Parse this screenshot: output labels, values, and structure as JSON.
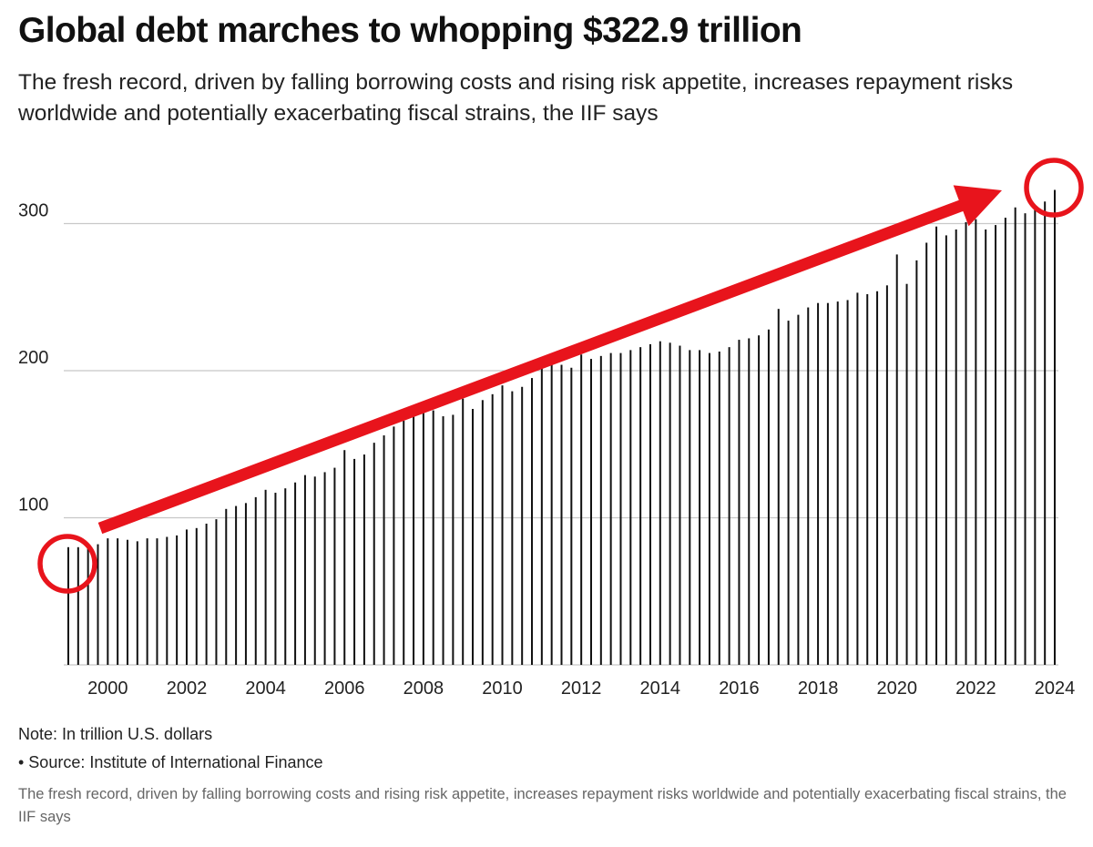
{
  "header": {
    "title": "Global debt marches to whopping $322.9 trillion",
    "subtitle": "The fresh record, driven by falling borrowing costs and rising risk appetite, increases repayment risks worldwide and potentially exacerbating fiscal strains, the IIF says"
  },
  "footer": {
    "note": "Note: In trillion U.S. dollars",
    "source": "• Source: Institute of International Finance",
    "caption": "The fresh record, driven by falling borrowing costs and rising risk appetite, increases repayment risks worldwide and potentially exacerbating fiscal strains, the IIF says"
  },
  "colors": {
    "bar": "#111111",
    "grid": "#c8c8c8",
    "annotation": "#e8141c"
  },
  "chart_data": {
    "type": "bar",
    "title": "Global debt marches to whopping $322.9 trillion",
    "xlabel": "",
    "ylabel": "",
    "unit": "trillion U.S. dollars",
    "ylim": [
      0,
      340
    ],
    "y_ticks": [
      100,
      200,
      300
    ],
    "x_tick_labels": [
      "2000",
      "2002",
      "2004",
      "2006",
      "2008",
      "2010",
      "2012",
      "2014",
      "2016",
      "2018",
      "2020",
      "2022",
      "2024"
    ],
    "grid": true,
    "series": [
      {
        "name": "Global debt",
        "points": [
          {
            "x": 1999.0,
            "y": 80
          },
          {
            "x": 1999.25,
            "y": 80
          },
          {
            "x": 1999.5,
            "y": 81
          },
          {
            "x": 1999.75,
            "y": 82
          },
          {
            "x": 2000.0,
            "y": 86
          },
          {
            "x": 2000.25,
            "y": 86
          },
          {
            "x": 2000.5,
            "y": 85
          },
          {
            "x": 2000.75,
            "y": 84
          },
          {
            "x": 2001.0,
            "y": 86
          },
          {
            "x": 2001.25,
            "y": 86
          },
          {
            "x": 2001.5,
            "y": 87
          },
          {
            "x": 2001.75,
            "y": 88
          },
          {
            "x": 2002.0,
            "y": 92
          },
          {
            "x": 2002.25,
            "y": 93
          },
          {
            "x": 2002.5,
            "y": 96
          },
          {
            "x": 2002.75,
            "y": 99
          },
          {
            "x": 2003.0,
            "y": 106
          },
          {
            "x": 2003.25,
            "y": 108
          },
          {
            "x": 2003.5,
            "y": 110
          },
          {
            "x": 2003.75,
            "y": 114
          },
          {
            "x": 2004.0,
            "y": 119
          },
          {
            "x": 2004.25,
            "y": 117
          },
          {
            "x": 2004.5,
            "y": 120
          },
          {
            "x": 2004.75,
            "y": 124
          },
          {
            "x": 2005.0,
            "y": 129
          },
          {
            "x": 2005.25,
            "y": 128
          },
          {
            "x": 2005.5,
            "y": 131
          },
          {
            "x": 2005.75,
            "y": 134
          },
          {
            "x": 2006.0,
            "y": 146
          },
          {
            "x": 2006.25,
            "y": 140
          },
          {
            "x": 2006.5,
            "y": 143
          },
          {
            "x": 2006.75,
            "y": 151
          },
          {
            "x": 2007.0,
            "y": 156
          },
          {
            "x": 2007.25,
            "y": 162
          },
          {
            "x": 2007.5,
            "y": 166
          },
          {
            "x": 2007.75,
            "y": 170
          },
          {
            "x": 2008.0,
            "y": 172
          },
          {
            "x": 2008.25,
            "y": 173
          },
          {
            "x": 2008.5,
            "y": 169
          },
          {
            "x": 2008.75,
            "y": 170
          },
          {
            "x": 2009.0,
            "y": 181
          },
          {
            "x": 2009.25,
            "y": 174
          },
          {
            "x": 2009.5,
            "y": 180
          },
          {
            "x": 2009.75,
            "y": 184
          },
          {
            "x": 2010.0,
            "y": 190
          },
          {
            "x": 2010.25,
            "y": 186
          },
          {
            "x": 2010.5,
            "y": 189
          },
          {
            "x": 2010.75,
            "y": 195
          },
          {
            "x": 2011.0,
            "y": 203
          },
          {
            "x": 2011.25,
            "y": 205
          },
          {
            "x": 2011.5,
            "y": 204
          },
          {
            "x": 2011.75,
            "y": 202
          },
          {
            "x": 2012.0,
            "y": 211
          },
          {
            "x": 2012.25,
            "y": 208
          },
          {
            "x": 2012.5,
            "y": 210
          },
          {
            "x": 2012.75,
            "y": 212
          },
          {
            "x": 2013.0,
            "y": 212
          },
          {
            "x": 2013.25,
            "y": 214
          },
          {
            "x": 2013.5,
            "y": 216
          },
          {
            "x": 2013.75,
            "y": 218
          },
          {
            "x": 2014.0,
            "y": 220
          },
          {
            "x": 2014.25,
            "y": 219
          },
          {
            "x": 2014.5,
            "y": 217
          },
          {
            "x": 2014.75,
            "y": 214
          },
          {
            "x": 2015.0,
            "y": 214
          },
          {
            "x": 2015.25,
            "y": 212
          },
          {
            "x": 2015.5,
            "y": 213
          },
          {
            "x": 2015.75,
            "y": 216
          },
          {
            "x": 2016.0,
            "y": 221
          },
          {
            "x": 2016.25,
            "y": 222
          },
          {
            "x": 2016.5,
            "y": 224
          },
          {
            "x": 2016.75,
            "y": 228
          },
          {
            "x": 2017.0,
            "y": 242
          },
          {
            "x": 2017.25,
            "y": 234
          },
          {
            "x": 2017.5,
            "y": 238
          },
          {
            "x": 2017.75,
            "y": 243
          },
          {
            "x": 2018.0,
            "y": 246
          },
          {
            "x": 2018.25,
            "y": 246
          },
          {
            "x": 2018.5,
            "y": 247
          },
          {
            "x": 2018.75,
            "y": 248
          },
          {
            "x": 2019.0,
            "y": 253
          },
          {
            "x": 2019.25,
            "y": 252
          },
          {
            "x": 2019.5,
            "y": 254
          },
          {
            "x": 2019.75,
            "y": 258
          },
          {
            "x": 2020.0,
            "y": 279
          },
          {
            "x": 2020.25,
            "y": 259
          },
          {
            "x": 2020.5,
            "y": 275
          },
          {
            "x": 2020.75,
            "y": 287
          },
          {
            "x": 2021.0,
            "y": 298
          },
          {
            "x": 2021.25,
            "y": 292
          },
          {
            "x": 2021.5,
            "y": 296
          },
          {
            "x": 2021.75,
            "y": 301
          },
          {
            "x": 2022.0,
            "y": 303
          },
          {
            "x": 2022.25,
            "y": 296
          },
          {
            "x": 2022.5,
            "y": 299
          },
          {
            "x": 2022.75,
            "y": 304
          },
          {
            "x": 2023.0,
            "y": 311
          },
          {
            "x": 2023.25,
            "y": 307
          },
          {
            "x": 2023.5,
            "y": 311
          },
          {
            "x": 2023.75,
            "y": 315
          },
          {
            "x": 2024.0,
            "y": 322.9
          }
        ]
      }
    ],
    "annotations": [
      {
        "kind": "arrow",
        "from": {
          "x": 2000,
          "y": 90
        },
        "to": {
          "x": 2022.9,
          "y": 318
        }
      },
      {
        "kind": "circle",
        "at": {
          "x": 1999,
          "y": 80
        }
      },
      {
        "kind": "circle",
        "at": {
          "x": 2024,
          "y": 322.9
        }
      }
    ]
  }
}
